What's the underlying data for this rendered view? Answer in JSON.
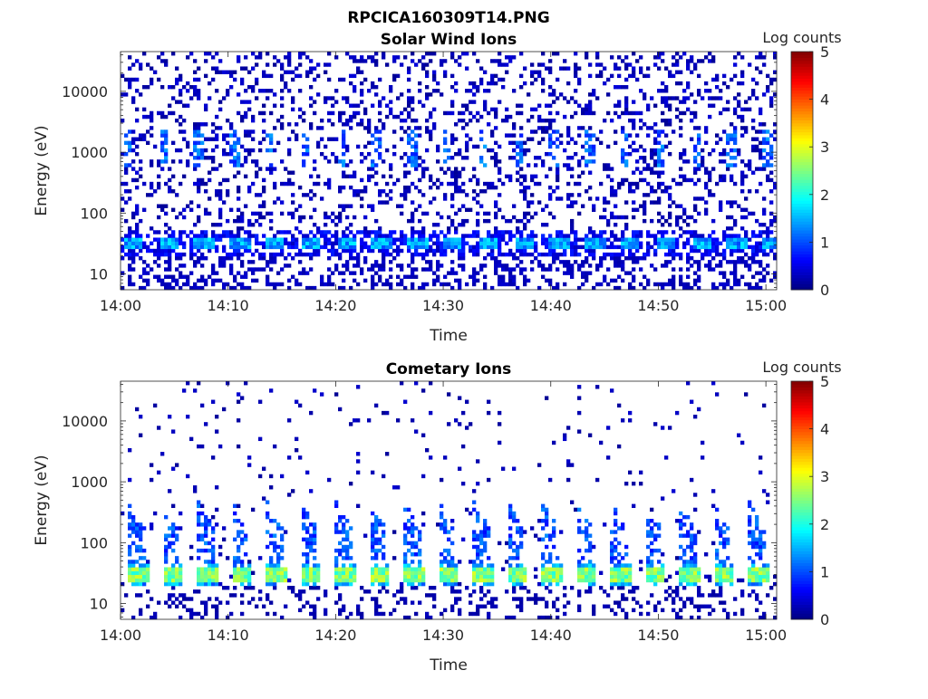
{
  "figure_title": "RPCICA160309T14.PNG",
  "chart_data": [
    {
      "type": "heatmap",
      "title": "Solar Wind Ions",
      "xlabel": "Time",
      "ylabel": "Energy (eV)",
      "xlim": [
        "14:00",
        "15:01"
      ],
      "x_ticks": [
        "14:00",
        "14:10",
        "14:20",
        "14:30",
        "14:40",
        "14:50",
        "15:00"
      ],
      "y_scale": "log",
      "ylim": [
        5.5,
        45000
      ],
      "y_ticks": [
        "10",
        "100",
        "1000",
        "10000"
      ],
      "y_tick_values": [
        10,
        100,
        1000,
        10000
      ],
      "colorbar": {
        "label": "Log counts",
        "ticks": [
          "0",
          "1",
          "2",
          "3",
          "4",
          "5"
        ],
        "range": [
          0,
          5
        ],
        "colormap": "jet"
      },
      "grid": false,
      "pattern": {
        "cycle_period_min": 3.3,
        "cycle_start_min": 0.3,
        "main_band_ev": 32,
        "main_band_logcounts": 1.4,
        "upper_band_ev": [
          600,
          2500
        ],
        "upper_band_logcounts": 1.2,
        "background_logcounts": 0.15
      }
    },
    {
      "type": "heatmap",
      "title": "Cometary Ions",
      "xlabel": "Time",
      "ylabel": "Energy (eV)",
      "xlim": [
        "14:00",
        "15:01"
      ],
      "x_ticks": [
        "14:00",
        "14:10",
        "14:20",
        "14:30",
        "14:40",
        "14:50",
        "15:00"
      ],
      "y_scale": "log",
      "ylim": [
        5.5,
        45000
      ],
      "y_ticks": [
        "10",
        "100",
        "1000",
        "10000"
      ],
      "y_tick_values": [
        10,
        100,
        1000,
        10000
      ],
      "colorbar": {
        "label": "Log counts",
        "ticks": [
          "0",
          "1",
          "2",
          "3",
          "4",
          "5"
        ],
        "range": [
          0,
          5
        ],
        "colormap": "jet"
      },
      "grid": false,
      "pattern": {
        "cycle_period_min": 3.2,
        "cycle_start_min": 0.8,
        "main_band_ev": 30,
        "main_band_logcounts": 2.7,
        "spike_top_ev": 500,
        "spike_logcounts": 1.1,
        "background_logcounts": 0.05
      }
    }
  ]
}
